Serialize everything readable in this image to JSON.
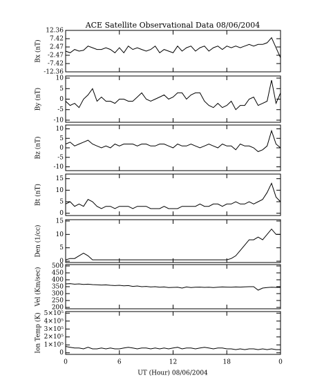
{
  "chart_data": {
    "type": "line",
    "title": "ACE Satellite Observational Data   08/06/2004",
    "xlabel": "UT (Hour)   08/06/2004",
    "color": "#000000",
    "xlim": [
      0,
      24
    ],
    "xticks": [
      0,
      6,
      12,
      18,
      {
        "value": 24,
        "label": "0"
      }
    ],
    "x": [
      0,
      0.5,
      1,
      1.5,
      2,
      2.5,
      3,
      3.5,
      4,
      4.5,
      5,
      5.5,
      6,
      6.5,
      7,
      7.5,
      8,
      8.5,
      9,
      9.5,
      10,
      10.5,
      11,
      11.5,
      12,
      12.5,
      13,
      13.5,
      14,
      14.5,
      15,
      15.5,
      16,
      16.5,
      17,
      17.5,
      18,
      18.5,
      19,
      19.5,
      20,
      20.5,
      21,
      21.5,
      22,
      22.5,
      23,
      23.5,
      24
    ],
    "panels": [
      {
        "ylabel": "Bx (nT)",
        "ylim": [
          -12.36,
          12.36
        ],
        "yticks": [
          -12.36,
          -7.42,
          -2.47,
          2.47,
          7.42,
          12.36
        ],
        "values": [
          0,
          -1,
          1,
          0,
          0.5,
          3,
          2,
          1,
          1,
          2,
          1,
          -1,
          2,
          -1,
          3,
          1,
          2,
          1,
          0,
          1,
          3,
          -1,
          1,
          0,
          -1,
          3,
          0,
          2,
          3,
          0,
          2,
          3,
          0,
          2,
          3,
          1,
          3,
          2,
          3,
          2,
          3,
          4,
          3,
          4,
          4,
          5,
          8,
          2,
          -4
        ]
      },
      {
        "ylabel": "By (nT)",
        "ylim": [
          -11,
          11
        ],
        "yticks": [
          -10,
          -5,
          0,
          5,
          10
        ],
        "values": [
          -1,
          -3,
          -2,
          -4,
          0,
          2,
          5,
          -1,
          1,
          -1,
          -1,
          -2,
          0,
          0,
          -1,
          -1,
          1,
          3,
          0,
          -1,
          0,
          1,
          2,
          0,
          1,
          3,
          3,
          0,
          2,
          3,
          3,
          -1,
          -3,
          -4,
          -2,
          -4,
          -3,
          -1,
          -5,
          -3,
          -3,
          0,
          1,
          -3,
          -2,
          -1,
          9,
          -2,
          3
        ]
      },
      {
        "ylabel": "Bz (nT)",
        "ylim": [
          -12,
          12
        ],
        "yticks": [
          -10,
          -5,
          0,
          5,
          10
        ],
        "values": [
          2,
          3,
          1,
          2,
          3,
          4,
          2,
          1,
          0,
          1,
          0,
          2,
          1,
          2,
          2,
          2,
          1,
          2,
          2,
          1,
          1,
          2,
          2,
          1,
          0,
          2,
          1,
          1,
          2,
          1,
          0,
          1,
          2,
          1,
          0,
          2,
          1,
          1,
          -1,
          2,
          1,
          1,
          0,
          -2,
          -1,
          1,
          9,
          2,
          0
        ]
      },
      {
        "ylabel": "Bt (nT)",
        "ylim": [
          -1,
          17
        ],
        "yticks": [
          0,
          5,
          10,
          15
        ],
        "values": [
          4,
          5,
          3,
          4,
          3,
          6,
          5,
          3,
          2,
          3,
          3,
          2,
          3,
          3,
          3,
          2,
          3,
          3,
          3,
          2,
          2,
          2,
          3,
          2,
          2,
          2,
          3,
          3,
          3,
          3,
          4,
          3,
          3,
          4,
          4,
          3,
          4,
          4,
          5,
          4,
          4,
          5,
          4,
          5,
          6,
          9,
          13,
          7,
          5
        ]
      },
      {
        "ylabel": "Den (1/cc)",
        "ylim": [
          -0.5,
          15.5
        ],
        "yticks": [
          0,
          5,
          10,
          15
        ],
        "values": [
          0.5,
          1,
          1,
          2,
          3,
          2,
          0.5,
          0.5,
          0.5,
          0.5,
          0.5,
          0.5,
          0.5,
          0.5,
          0.5,
          0.5,
          0.5,
          0.5,
          0.5,
          0.5,
          0.5,
          0.5,
          0.5,
          0.5,
          0.5,
          0.5,
          0.5,
          0.5,
          0.5,
          0.5,
          0.5,
          0.5,
          0.5,
          0.5,
          0.5,
          0.5,
          0.5,
          1,
          2,
          4,
          6,
          8,
          8,
          9,
          8,
          10,
          12,
          10,
          10
        ]
      },
      {
        "ylabel": "Vel (Km/sec)",
        "ylim": [
          190,
          510
        ],
        "yticks": [
          200,
          250,
          300,
          350,
          400,
          450,
          500
        ],
        "values": [
          370,
          372,
          368,
          370,
          366,
          368,
          365,
          364,
          362,
          363,
          360,
          358,
          360,
          356,
          358,
          352,
          355,
          350,
          352,
          348,
          350,
          346,
          348,
          344,
          345,
          346,
          340,
          348,
          344,
          346,
          347,
          345,
          346,
          344,
          346,
          348,
          347,
          346,
          348,
          347,
          349,
          350,
          350,
          325,
          340,
          344,
          346,
          345,
          345
        ]
      },
      {
        "ylabel": "Ion Temp (K)",
        "ylim": [
          -20000,
          520000
        ],
        "yticks": [
          0,
          {
            "value": 100000,
            "label": "1×10⁵"
          },
          {
            "value": 200000,
            "label": "2×10⁵"
          },
          {
            "value": 300000,
            "label": "3×10⁵"
          },
          {
            "value": 400000,
            "label": "4×10⁵"
          },
          {
            "value": 500000,
            "label": "5×10⁵"
          }
        ],
        "values": [
          80000,
          70000,
          60000,
          60000,
          50000,
          70000,
          50000,
          50000,
          60000,
          50000,
          60000,
          50000,
          50000,
          60000,
          70000,
          60000,
          50000,
          60000,
          60000,
          50000,
          60000,
          50000,
          60000,
          50000,
          60000,
          70000,
          50000,
          60000,
          60000,
          50000,
          60000,
          70000,
          60000,
          50000,
          60000,
          60000,
          50000,
          50000,
          40000,
          50000,
          40000,
          50000,
          50000,
          40000,
          50000,
          40000,
          50000,
          40000,
          40000
        ]
      }
    ]
  }
}
